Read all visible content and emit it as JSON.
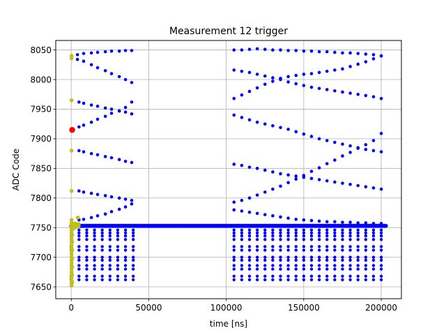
{
  "chart_data": {
    "type": "scatter",
    "title": "Measurement 12 trigger",
    "xlabel": "time [ns]",
    "ylabel": "ADC Code",
    "xlim": [
      -10000,
      213000
    ],
    "ylim": [
      7630,
      8066
    ],
    "grid": true,
    "xticks": [
      0,
      50000,
      100000,
      150000,
      200000
    ],
    "yticks": [
      7650,
      7700,
      7750,
      7800,
      7850,
      7900,
      7950,
      8000,
      8050
    ],
    "colors": {
      "main": "#0000ff",
      "early": "#bfbf1f",
      "trigger": "#ff0000"
    },
    "level_grid": {
      "x_start": 0,
      "x_end": 200000,
      "x_step": 5000,
      "gap_x": [
        40000,
        104000
      ],
      "y": [
        7662,
        7668,
        7680,
        7686,
        7695,
        7700,
        7712,
        7718,
        7730,
        7736,
        7741,
        7746
      ]
    },
    "center_line": {
      "y": 7753,
      "x_start": 0,
      "x_end": 203000,
      "x_step": 500
    },
    "series": [
      {
        "name": "",
        "color": "main",
        "points": [
          [
            4000,
            8042
          ],
          [
            8000,
            8044
          ],
          [
            13000,
            8045
          ],
          [
            17000,
            8046
          ],
          [
            22000,
            8047
          ],
          [
            26000,
            8048
          ],
          [
            31000,
            8048
          ],
          [
            35000,
            8049
          ],
          [
            39000,
            8049
          ],
          [
            4000,
            8034
          ],
          [
            8000,
            8031
          ],
          [
            13000,
            8025
          ],
          [
            17000,
            8020
          ],
          [
            22000,
            8015
          ],
          [
            26000,
            8010
          ],
          [
            31000,
            8005
          ],
          [
            35000,
            8000
          ],
          [
            39000,
            7995
          ],
          [
            5000,
            7962
          ],
          [
            8000,
            7960
          ],
          [
            13000,
            7957
          ],
          [
            17000,
            7955
          ],
          [
            22000,
            7952
          ],
          [
            26000,
            7950
          ],
          [
            31000,
            7947
          ],
          [
            35000,
            7945
          ],
          [
            39000,
            7942
          ],
          [
            5000,
            7920
          ],
          [
            8000,
            7923
          ],
          [
            13000,
            7928
          ],
          [
            17000,
            7933
          ],
          [
            22000,
            7938
          ],
          [
            26000,
            7943
          ],
          [
            31000,
            7947
          ],
          [
            35000,
            7953
          ],
          [
            39000,
            7962
          ],
          [
            5000,
            7880
          ],
          [
            8000,
            7878
          ],
          [
            13000,
            7875
          ],
          [
            17000,
            7873
          ],
          [
            22000,
            7870
          ],
          [
            26000,
            7868
          ],
          [
            31000,
            7865
          ],
          [
            35000,
            7862
          ],
          [
            39000,
            7860
          ],
          [
            5000,
            7812
          ],
          [
            8000,
            7810
          ],
          [
            13000,
            7808
          ],
          [
            17000,
            7806
          ],
          [
            22000,
            7804
          ],
          [
            26000,
            7802
          ],
          [
            31000,
            7800
          ],
          [
            35000,
            7798
          ],
          [
            39000,
            7796
          ],
          [
            5000,
            7763
          ],
          [
            8000,
            7764
          ],
          [
            13000,
            7767
          ],
          [
            17000,
            7770
          ],
          [
            22000,
            7773
          ],
          [
            26000,
            7777
          ],
          [
            31000,
            7781
          ],
          [
            35000,
            7785
          ],
          [
            39000,
            7790
          ],
          [
            105000,
            8050
          ],
          [
            110000,
            8050
          ],
          [
            115000,
            8051
          ],
          [
            120000,
            8052
          ],
          [
            125000,
            8051
          ],
          [
            130000,
            8050
          ],
          [
            135000,
            8050
          ],
          [
            140000,
            8049
          ],
          [
            145000,
            8049
          ],
          [
            150000,
            8048
          ],
          [
            155000,
            8048
          ],
          [
            160000,
            8047
          ],
          [
            165000,
            8047
          ],
          [
            170000,
            8046
          ],
          [
            175000,
            8045
          ],
          [
            180000,
            8045
          ],
          [
            185000,
            8044
          ],
          [
            190000,
            8043
          ],
          [
            195000,
            8042
          ],
          [
            200000,
            8040
          ],
          [
            105000,
            8016
          ],
          [
            110000,
            8014
          ],
          [
            115000,
            8012
          ],
          [
            120000,
            8009
          ],
          [
            125000,
            8006
          ],
          [
            130000,
            8003
          ],
          [
            135000,
            8000
          ],
          [
            140000,
            7996
          ],
          [
            145000,
            7993
          ],
          [
            150000,
            7990
          ],
          [
            155000,
            7987
          ],
          [
            160000,
            7985
          ],
          [
            165000,
            7983
          ],
          [
            170000,
            7981
          ],
          [
            175000,
            7979
          ],
          [
            180000,
            7977
          ],
          [
            185000,
            7975
          ],
          [
            190000,
            7973
          ],
          [
            195000,
            7971
          ],
          [
            200000,
            7968
          ],
          [
            105000,
            7968
          ],
          [
            110000,
            7974
          ],
          [
            115000,
            7980
          ],
          [
            120000,
            7986
          ],
          [
            125000,
            7992
          ],
          [
            130000,
            7997
          ],
          [
            135000,
            8002
          ],
          [
            140000,
            8005
          ],
          [
            145000,
            8007
          ],
          [
            150000,
            8009
          ],
          [
            155000,
            8010
          ],
          [
            160000,
            8012
          ],
          [
            165000,
            8014
          ],
          [
            170000,
            8016
          ],
          [
            175000,
            8018
          ],
          [
            180000,
            8022
          ],
          [
            185000,
            8026
          ],
          [
            190000,
            8030
          ],
          [
            195000,
            8035
          ],
          [
            200000,
            8040
          ],
          [
            105000,
            7940
          ],
          [
            110000,
            7936
          ],
          [
            115000,
            7932
          ],
          [
            120000,
            7928
          ],
          [
            125000,
            7925
          ],
          [
            130000,
            7922
          ],
          [
            135000,
            7919
          ],
          [
            140000,
            7916
          ],
          [
            145000,
            7912
          ],
          [
            150000,
            7908
          ],
          [
            155000,
            7904
          ],
          [
            160000,
            7900
          ],
          [
            165000,
            7897
          ],
          [
            170000,
            7894
          ],
          [
            175000,
            7891
          ],
          [
            180000,
            7888
          ],
          [
            185000,
            7885
          ],
          [
            190000,
            7882
          ],
          [
            195000,
            7880
          ],
          [
            200000,
            7878
          ],
          [
            105000,
            7857
          ],
          [
            110000,
            7855
          ],
          [
            115000,
            7852
          ],
          [
            120000,
            7850
          ],
          [
            125000,
            7847
          ],
          [
            130000,
            7844
          ],
          [
            135000,
            7841
          ],
          [
            140000,
            7839
          ],
          [
            145000,
            7837
          ],
          [
            150000,
            7835
          ],
          [
            155000,
            7833
          ],
          [
            160000,
            7831
          ],
          [
            165000,
            7829
          ],
          [
            170000,
            7827
          ],
          [
            175000,
            7825
          ],
          [
            180000,
            7823
          ],
          [
            185000,
            7821
          ],
          [
            190000,
            7819
          ],
          [
            195000,
            7817
          ],
          [
            200000,
            7815
          ],
          [
            105000,
            7793
          ],
          [
            110000,
            7796
          ],
          [
            115000,
            7800
          ],
          [
            120000,
            7805
          ],
          [
            125000,
            7810
          ],
          [
            130000,
            7815
          ],
          [
            135000,
            7820
          ],
          [
            140000,
            7826
          ],
          [
            145000,
            7832
          ],
          [
            150000,
            7838
          ],
          [
            155000,
            7845
          ],
          [
            160000,
            7851
          ],
          [
            165000,
            7858
          ],
          [
            170000,
            7864
          ],
          [
            175000,
            7871
          ],
          [
            180000,
            7877
          ],
          [
            185000,
            7884
          ],
          [
            190000,
            7890
          ],
          [
            195000,
            7897
          ],
          [
            200000,
            7909
          ],
          [
            105000,
            7780
          ],
          [
            110000,
            7778
          ],
          [
            115000,
            7776
          ],
          [
            120000,
            7774
          ],
          [
            125000,
            7772
          ],
          [
            130000,
            7770
          ],
          [
            135000,
            7768
          ],
          [
            140000,
            7766
          ],
          [
            145000,
            7764
          ],
          [
            150000,
            7763
          ],
          [
            155000,
            7762
          ],
          [
            160000,
            7761
          ],
          [
            165000,
            7760
          ],
          [
            170000,
            7760
          ],
          [
            175000,
            7759
          ],
          [
            180000,
            7759
          ],
          [
            185000,
            7758
          ],
          [
            190000,
            7758
          ],
          [
            195000,
            7757
          ],
          [
            200000,
            7757
          ]
        ]
      },
      {
        "name": "",
        "color": "early",
        "points": [
          [
            200,
            8040
          ],
          [
            200,
            8036
          ],
          [
            200,
            7965
          ],
          [
            200,
            7880
          ],
          [
            200,
            7812
          ],
          [
            200,
            7763
          ],
          [
            200,
            7758
          ],
          [
            200,
            7754
          ],
          [
            200,
            7750
          ],
          [
            200,
            7745
          ],
          [
            200,
            7740
          ],
          [
            200,
            7735
          ],
          [
            200,
            7730
          ],
          [
            200,
            7725
          ],
          [
            200,
            7720
          ],
          [
            200,
            7715
          ],
          [
            200,
            7710
          ],
          [
            200,
            7705
          ],
          [
            200,
            7700
          ],
          [
            200,
            7695
          ],
          [
            200,
            7690
          ],
          [
            200,
            7685
          ],
          [
            200,
            7680
          ],
          [
            200,
            7675
          ],
          [
            200,
            7670
          ],
          [
            200,
            7665
          ],
          [
            200,
            7660
          ],
          [
            200,
            7656
          ],
          [
            200,
            7652
          ],
          [
            600,
            7755
          ],
          [
            600,
            7748
          ],
          [
            600,
            7738
          ],
          [
            600,
            7726
          ],
          [
            600,
            7712
          ],
          [
            600,
            7698
          ],
          [
            600,
            7684
          ],
          [
            600,
            7670
          ],
          [
            600,
            7658
          ],
          [
            1200,
            7756
          ],
          [
            1200,
            7750
          ],
          [
            1800,
            7756
          ],
          [
            1800,
            7749
          ],
          [
            2400,
            7757
          ],
          [
            2400,
            7752
          ],
          [
            3000,
            7756
          ],
          [
            3000,
            7751
          ],
          [
            3600,
            7755
          ],
          [
            3600,
            7752
          ],
          [
            4200,
            7767
          ],
          [
            4200,
            7756
          ],
          [
            4800,
            7756
          ],
          [
            4800,
            7753
          ]
        ]
      },
      {
        "name": "",
        "color": "trigger",
        "big": true,
        "points": [
          [
            600,
            7915
          ]
        ]
      }
    ]
  }
}
